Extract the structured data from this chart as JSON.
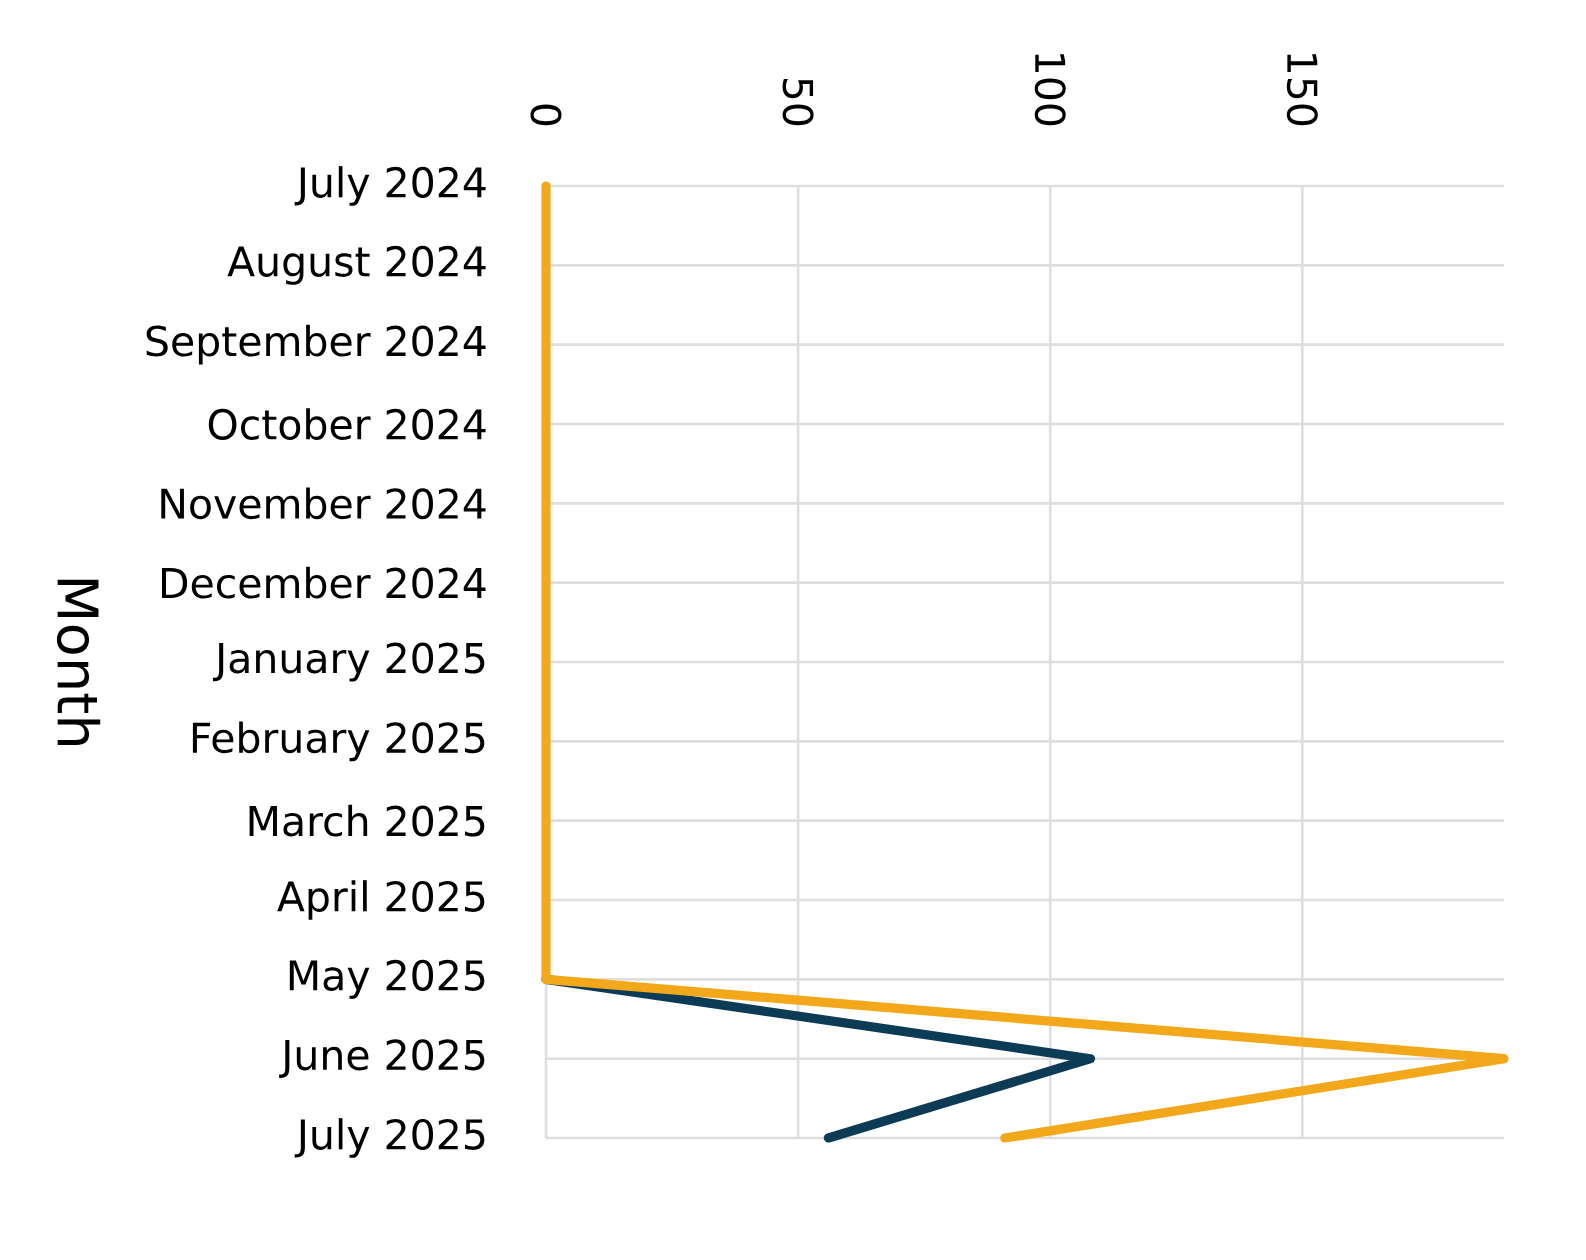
{
  "chart_data": {
    "type": "line",
    "orientation": "horizontal",
    "ylabel": "Month",
    "categories": [
      "July 2024",
      "August 2024",
      "September 2024",
      "October 2024",
      "November 2024",
      "December 2024",
      "January 2025",
      "February 2025",
      "March 2025",
      "April 2025",
      "May 2025",
      "June 2025",
      "July 2025"
    ],
    "series": [
      {
        "color": "#0b3b55",
        "values": [
          null,
          null,
          null,
          null,
          null,
          null,
          null,
          null,
          null,
          null,
          0,
          108,
          56
        ]
      },
      {
        "color": "#f3a81b",
        "values": [
          0,
          0,
          0,
          0,
          0,
          0,
          0,
          0,
          0,
          0,
          0,
          190,
          91
        ]
      }
    ],
    "xlim": [
      0,
      190
    ],
    "xticks": [
      0,
      50,
      100,
      150
    ],
    "grid": true
  }
}
